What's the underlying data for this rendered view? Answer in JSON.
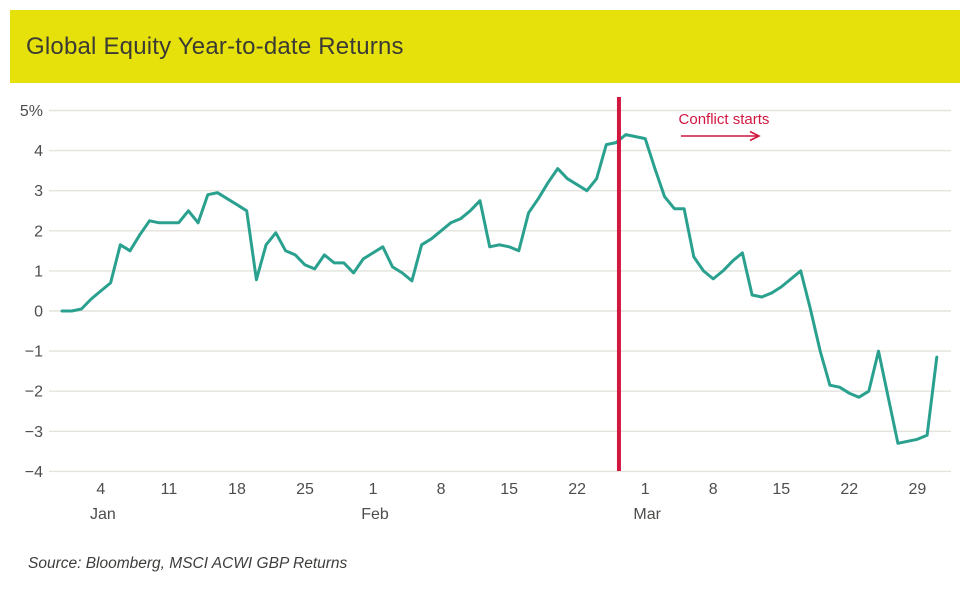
{
  "header": {
    "title": "Global Equity Year-to-date Returns",
    "background_color": "#e7e10b",
    "text_color": "#3b3b33"
  },
  "footer": {
    "source": "Source: Bloomberg, MSCI ACWI GBP Returns"
  },
  "chart_data": {
    "type": "line",
    "title": "Global Equity Year-to-date Returns",
    "unit": "percent",
    "grid": "horizontal",
    "legend": "none",
    "ylim": [
      -4,
      5
    ],
    "colors": {
      "line": "#2aa18f",
      "event_line": "#d1173f",
      "gridline": "#e4e3db",
      "tick_text": "#4d4d4b"
    },
    "y_axis": {
      "ticks": [
        {
          "value": 5,
          "label": "5%"
        },
        {
          "value": 4,
          "label": "4"
        },
        {
          "value": 3,
          "label": "3"
        },
        {
          "value": 2,
          "label": "2"
        },
        {
          "value": 1,
          "label": "1"
        },
        {
          "value": 0,
          "label": "0"
        },
        {
          "value": -1,
          "label": "−1"
        },
        {
          "value": -2,
          "label": "−2"
        },
        {
          "value": -3,
          "label": "−3"
        },
        {
          "value": -4,
          "label": "−4"
        }
      ]
    },
    "x_axis": {
      "note": "day index, 0 = Dec 31 baseline",
      "ticks": [
        {
          "d": 4,
          "label": "4"
        },
        {
          "d": 11,
          "label": "11"
        },
        {
          "d": 18,
          "label": "18"
        },
        {
          "d": 25,
          "label": "25"
        },
        {
          "d": 32,
          "label": "1"
        },
        {
          "d": 39,
          "label": "8"
        },
        {
          "d": 46,
          "label": "15"
        },
        {
          "d": 53,
          "label": "22"
        },
        {
          "d": 60,
          "label": "1"
        },
        {
          "d": 67,
          "label": "8"
        },
        {
          "d": 74,
          "label": "15"
        },
        {
          "d": 81,
          "label": "22"
        },
        {
          "d": 88,
          "label": "29"
        }
      ],
      "month_labels": [
        {
          "d": 4,
          "label": "Jan"
        },
        {
          "d": 32,
          "label": "Feb"
        },
        {
          "d": 60,
          "label": "Mar"
        }
      ]
    },
    "annotation": {
      "label": "Conflict starts",
      "x_day": 57.3,
      "arrow": "right"
    },
    "series": [
      {
        "name": "MSCI ACWI GBP year-to-date return",
        "x": [
          0,
          1,
          2,
          3,
          4,
          5,
          6,
          7,
          8,
          9,
          10,
          11,
          12,
          13,
          14,
          15,
          16,
          17,
          18,
          19,
          20,
          21,
          22,
          23,
          24,
          25,
          26,
          27,
          28,
          29,
          30,
          31,
          32,
          33,
          34,
          35,
          36,
          37,
          38,
          39,
          40,
          41,
          42,
          43,
          44,
          45,
          46,
          47,
          48,
          49,
          50,
          51,
          52,
          53,
          54,
          55,
          56,
          57,
          58,
          59,
          60,
          61,
          62,
          63,
          64,
          65,
          66,
          67,
          68,
          69,
          70,
          71,
          72,
          73,
          74,
          75,
          76,
          77,
          78,
          79,
          80,
          81,
          82,
          83,
          84,
          85,
          86,
          87,
          88,
          89,
          90
        ],
        "y": [
          0.0,
          0.0,
          0.05,
          0.3,
          0.5,
          0.7,
          1.65,
          1.5,
          1.9,
          2.25,
          2.2,
          2.2,
          2.2,
          2.5,
          2.2,
          2.9,
          2.95,
          2.8,
          2.65,
          2.5,
          0.78,
          1.65,
          1.95,
          1.5,
          1.4,
          1.15,
          1.05,
          1.4,
          1.2,
          1.2,
          0.95,
          1.3,
          1.45,
          1.6,
          1.1,
          0.95,
          0.75,
          1.65,
          1.8,
          2.0,
          2.2,
          2.3,
          2.5,
          2.75,
          1.6,
          1.65,
          1.6,
          1.5,
          2.45,
          2.8,
          3.2,
          3.55,
          3.3,
          3.15,
          3.0,
          3.3,
          4.15,
          4.2,
          4.4,
          4.35,
          4.3,
          3.55,
          2.85,
          2.55,
          2.55,
          1.35,
          1.0,
          0.8,
          1.0,
          1.25,
          1.45,
          0.4,
          0.35,
          0.45,
          0.6,
          0.8,
          1.0,
          0.05,
          -1.0,
          -1.85,
          -1.9,
          -2.05,
          -2.15,
          -2.0,
          -1.0,
          -2.15,
          -3.3,
          -3.25,
          -3.2,
          -3.1,
          -1.15
        ]
      }
    ]
  }
}
